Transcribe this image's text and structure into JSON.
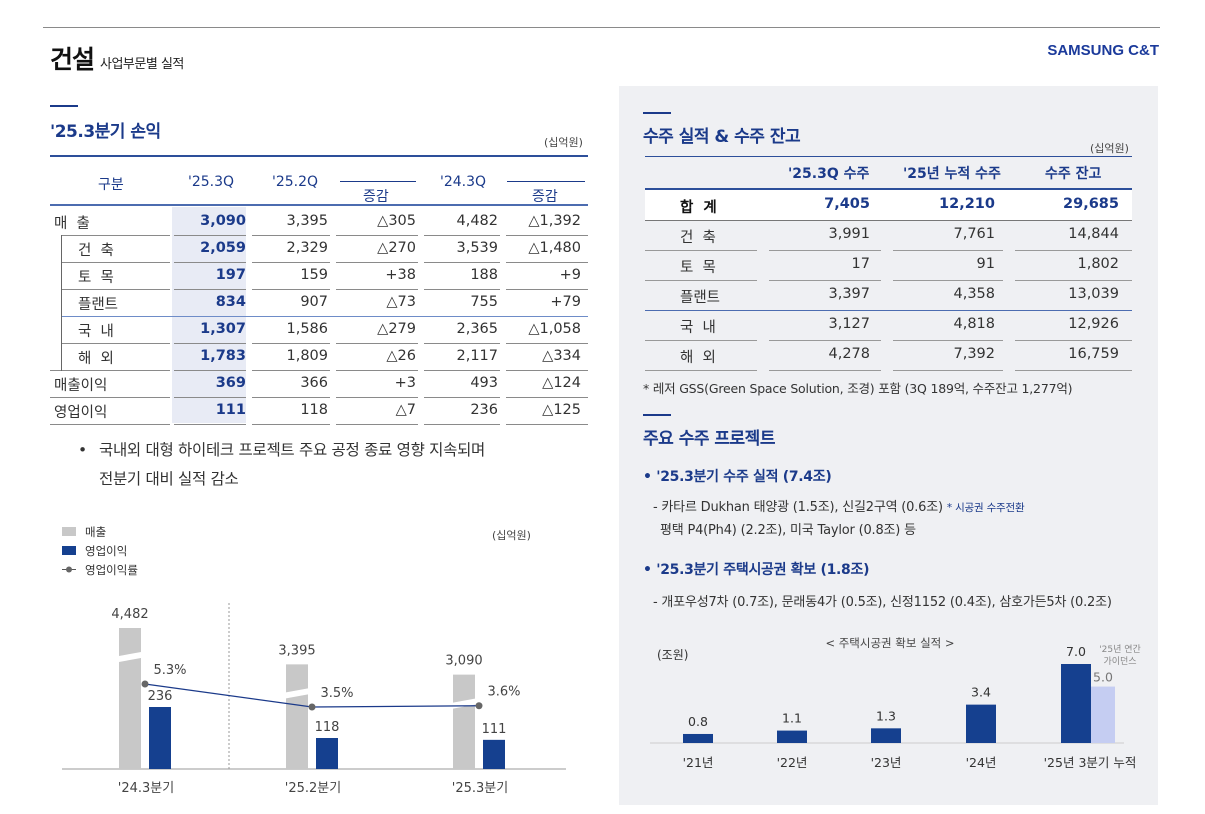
{
  "header": {
    "title_main": "건설",
    "title_sub": "사업부문별 실적",
    "brand": "SAMSUNG C&T"
  },
  "pl_section": {
    "title": "'25.3분기 손익",
    "unit": "(십억원)",
    "columns": [
      "구분",
      "'25.3Q",
      "'25.2Q",
      "증감",
      "'24.3Q",
      "증감"
    ],
    "rows": [
      {
        "label": "매  출",
        "q253": "3,090",
        "q252": "3,395",
        "chg1": "△305",
        "q243": "4,482",
        "chg2": "△1,392"
      },
      {
        "label": "건  축",
        "q253": "2,059",
        "q252": "2,329",
        "chg1": "△270",
        "q243": "3,539",
        "chg2": "△1,480"
      },
      {
        "label": "토  목",
        "q253": "197",
        "q252": "159",
        "chg1": "+38",
        "q243": "188",
        "chg2": "+9"
      },
      {
        "label": "플랜트",
        "q253": "834",
        "q252": "907",
        "chg1": "△73",
        "q243": "755",
        "chg2": "+79"
      },
      {
        "label": "국  내",
        "q253": "1,307",
        "q252": "1,586",
        "chg1": "△279",
        "q243": "2,365",
        "chg2": "△1,058"
      },
      {
        "label": "해  외",
        "q253": "1,783",
        "q252": "1,809",
        "chg1": "△26",
        "q243": "2,117",
        "chg2": "△334"
      },
      {
        "label": "매출이익",
        "q253": "369",
        "q252": "366",
        "chg1": "+3",
        "q243": "493",
        "chg2": "△124"
      },
      {
        "label": "영업이익",
        "q253": "111",
        "q252": "118",
        "chg1": "△7",
        "q243": "236",
        "chg2": "△125"
      }
    ],
    "bullet_line1": "국내외 대형 하이테크 프로젝트 주요 공정 종료 영향 지속되며",
    "bullet_line2": "전분기 대비 실적 감소"
  },
  "chart_data": [
    {
      "type": "bar",
      "title": "",
      "unit": "(십억원)",
      "categories": [
        "'24.3분기",
        "'25.2분기",
        "'25.3분기"
      ],
      "series": [
        {
          "name": "매출",
          "values": [
            4482,
            3395,
            3090
          ],
          "labels": [
            "4,482",
            "3,395",
            "3,090"
          ],
          "color": "#c8c8c8",
          "axis_break": true
        },
        {
          "name": "영업이익",
          "values": [
            236,
            118,
            111
          ],
          "labels": [
            "236",
            "118",
            "111"
          ],
          "color": "#15408f"
        },
        {
          "name": "영업이익률",
          "type": "line",
          "values": [
            5.3,
            3.5,
            3.6
          ],
          "labels": [
            "5.3%",
            "3.5%",
            "3.6%"
          ],
          "color": "#1b3a8a"
        }
      ],
      "legend": [
        "매출",
        "영업이익",
        "영업이익률"
      ],
      "legend_position": "top-left"
    },
    {
      "type": "bar",
      "title": "< 주택시공권 확보 실적 >",
      "ylabel": "(조원)",
      "categories": [
        "'21년",
        "'22년",
        "'23년",
        "'24년",
        "'25년 3분기 누적"
      ],
      "series": [
        {
          "name": "주택시공권 확보",
          "values": [
            0.8,
            1.1,
            1.3,
            3.4,
            7.0
          ],
          "labels": [
            "0.8",
            "1.1",
            "1.3",
            "3.4",
            "7.0"
          ],
          "color": "#15408f"
        },
        {
          "name": "'25년 연간 가이던스",
          "values": [
            null,
            null,
            null,
            null,
            5.0
          ],
          "labels": [
            "",
            "",
            "",
            "",
            "5.0"
          ],
          "color": "#c5cdf2"
        }
      ],
      "guidance_label": "'25년 연간\n가이던스"
    }
  ],
  "orders_section": {
    "title": "수주 실적 & 수주 잔고",
    "unit": "(십억원)",
    "columns": [
      "",
      "'25.3Q 수주",
      "'25년 누적 수주",
      "수주 잔고"
    ],
    "rows": [
      {
        "label": "합  계",
        "q": "7,405",
        "ytd": "12,210",
        "backlog": "29,685",
        "total": true
      },
      {
        "label": "건  축",
        "q": "3,991",
        "ytd": "7,761",
        "backlog": "14,844"
      },
      {
        "label": "토  목",
        "q": "17",
        "ytd": "91",
        "backlog": "1,802"
      },
      {
        "label": "플랜트",
        "q": "3,397",
        "ytd": "4,358",
        "backlog": "13,039"
      },
      {
        "label": "국  내",
        "q": "3,127",
        "ytd": "4,818",
        "backlog": "12,926"
      },
      {
        "label": "해  외",
        "q": "4,278",
        "ytd": "7,392",
        "backlog": "16,759"
      }
    ],
    "note": "* 레저 GSS(Green Space Solution, 조경) 포함 (3Q 189억, 수주잔고 1,277억)"
  },
  "projects_section": {
    "title": "주요 수주 프로젝트",
    "head1": "• '25.3분기 수주 실적 (7.4조)",
    "line1a": "- 카타르 Dukhan 태양광 (1.5조), 신길2구역 (0.6조)",
    "line1a_note": "* 시공권 수주전환",
    "line1b": "평택 P4(Ph4) (2.2조), 미국 Taylor (0.8조) 등",
    "head2": "• '25.3분기 주택시공권 확보 (1.8조)",
    "line2": "- 개포우성7차 (0.7조), 문래동4가 (0.5조), 신정1152 (0.4조), 삼호가든5차 (0.2조)"
  }
}
